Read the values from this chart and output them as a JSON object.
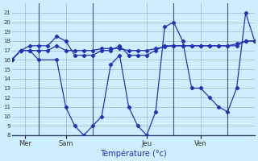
{
  "title": "Température (°c)",
  "bg_color": "#cceeff",
  "line_color": "#2233bb",
  "grid_color": "#99bbcc",
  "xlim": [
    0,
    27
  ],
  "ylim": [
    8,
    22
  ],
  "yticks": [
    8,
    9,
    10,
    11,
    12,
    13,
    14,
    15,
    16,
    17,
    18,
    19,
    20,
    21
  ],
  "day_ticks": [
    1.5,
    6,
    15,
    21
  ],
  "day_labels": [
    "Mer",
    "Sam",
    "Jeu",
    "Ven"
  ],
  "day_vlines": [
    3,
    9,
    18,
    24
  ],
  "series_main": {
    "x": [
      0,
      1,
      2,
      3,
      5,
      6,
      7,
      8,
      9,
      10,
      11,
      12,
      13,
      14,
      15,
      16,
      17,
      18,
      19,
      20,
      21,
      22,
      23,
      24,
      25,
      26,
      27
    ],
    "y": [
      16,
      17,
      17,
      16,
      16,
      11,
      9,
      8,
      9,
      10,
      15.5,
      16.5,
      11,
      9,
      8,
      10.5,
      19.5,
      20,
      18,
      13,
      13,
      12,
      11,
      10.5,
      13,
      21,
      18
    ]
  },
  "series_high": {
    "x": [
      0,
      1,
      2,
      3,
      4,
      5,
      6,
      7,
      8,
      9,
      10,
      11,
      12,
      13,
      14,
      15,
      16,
      17,
      18,
      19,
      20,
      21,
      22,
      23,
      24,
      25,
      26,
      27
    ],
    "y": [
      16,
      17,
      17.5,
      17.5,
      17.5,
      18.5,
      18,
      16.5,
      16.5,
      16.5,
      17,
      17,
      17.5,
      16.5,
      16.5,
      16.5,
      17,
      17.5,
      17.5,
      17.5,
      17.5,
      17.5,
      17.5,
      17.5,
      17.5,
      17.5,
      18,
      18
    ]
  },
  "series_mid": {
    "x": [
      0,
      1,
      2,
      3,
      4,
      5,
      6,
      7,
      8,
      9,
      10,
      11,
      12,
      13,
      14,
      15,
      16,
      17,
      18,
      19,
      20,
      21,
      22,
      23,
      24,
      25,
      26,
      27
    ],
    "y": [
      16,
      17,
      17,
      17,
      17,
      17.5,
      17,
      17,
      17,
      17,
      17.2,
      17.2,
      17.2,
      17,
      17,
      17,
      17.2,
      17.4,
      17.5,
      17.5,
      17.5,
      17.5,
      17.5,
      17.5,
      17.5,
      17.7,
      18,
      18
    ]
  }
}
